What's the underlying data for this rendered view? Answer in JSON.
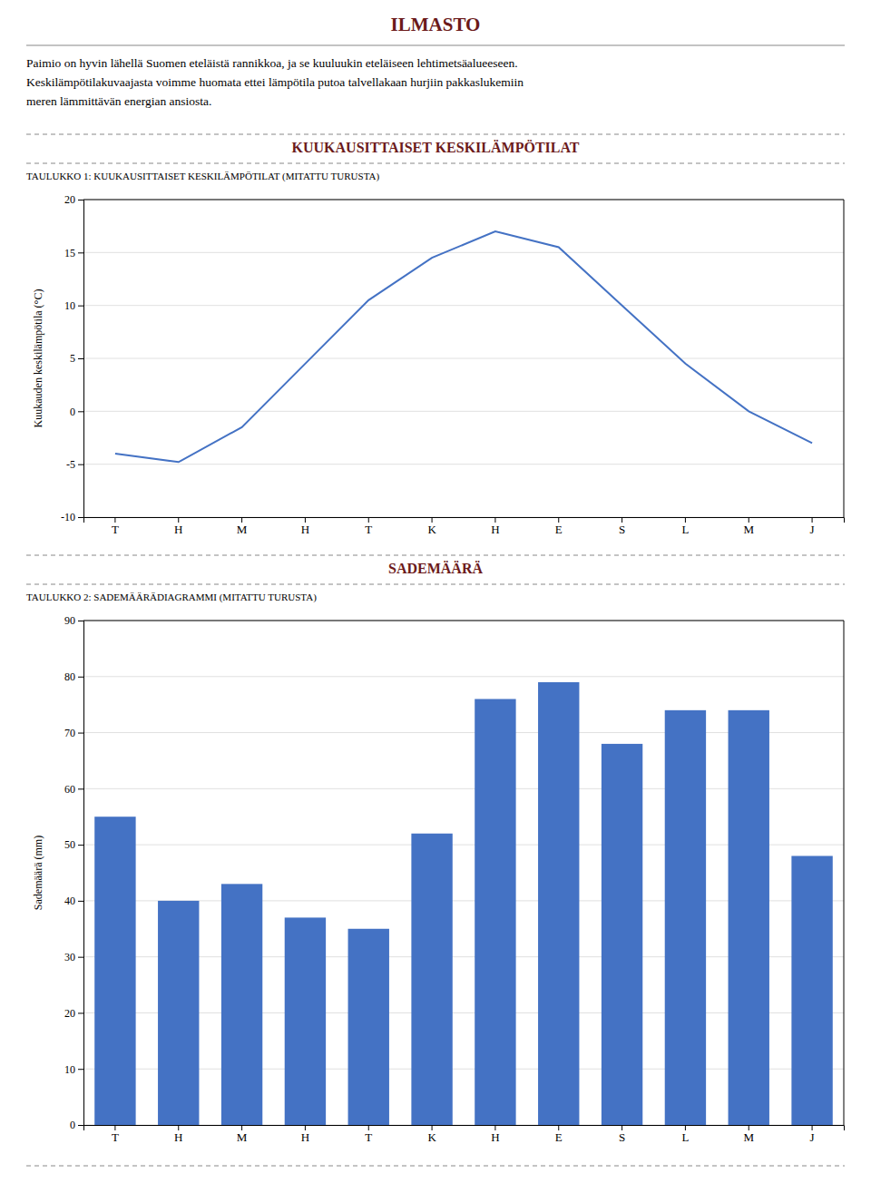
{
  "title": "ILMASTO",
  "annotations": [
    "Paimio on hyvin lähellä Suomen eteläistä rannikkoa, ja se kuuluukin eteläiseen lehtimetsäalueeseen.",
    "Keskilämpötilakuvaajasta voimme huomata ettei lämpötila putoa talvellakaan hurjiin pakkaslukemiin",
    "meren lämmittävän energian ansiosta."
  ],
  "chart_data": [
    {
      "type": "line",
      "title": "KUUKAUSITTAISET KESKILÄMPÖTILAT",
      "subtitle": "TAULUKKO 1: KUUKAUSITTAISET KESKILÄMPÖTILAT (MITATTU TURUSTA)",
      "categories": [
        "T",
        "H",
        "M",
        "H",
        "T",
        "K",
        "H",
        "E",
        "S",
        "L",
        "M",
        "J"
      ],
      "values": [
        -4.0,
        -4.8,
        -1.5,
        4.5,
        10.5,
        14.5,
        17.0,
        15.5,
        10.0,
        4.5,
        0.0,
        -3.0
      ],
      "color": "#4472C4",
      "ylim": [
        -10,
        20
      ],
      "yticks": [
        -10,
        -5,
        0,
        5,
        10,
        15,
        20
      ],
      "ylabel": "Kuukauden keskilämpötila (°C)",
      "grid": true
    },
    {
      "type": "bar",
      "title": "SADEMÄÄRÄ",
      "subtitle": "TAULUKKO 2: SADEMÄÄRÄDIAGRAMMI (MITATTU TURUSTA)",
      "categories": [
        "T",
        "H",
        "M",
        "H",
        "T",
        "K",
        "H",
        "E",
        "S",
        "L",
        "M",
        "J"
      ],
      "values": [
        55,
        40,
        43,
        37,
        35,
        52,
        76,
        79,
        68,
        74,
        74,
        48
      ],
      "color": "#4472C4",
      "ylim": [
        0,
        90
      ],
      "yticks": [
        0,
        10,
        20,
        30,
        40,
        50,
        60,
        70,
        80,
        90
      ],
      "ylabel": "Sademäärä (mm)",
      "grid": true
    }
  ]
}
